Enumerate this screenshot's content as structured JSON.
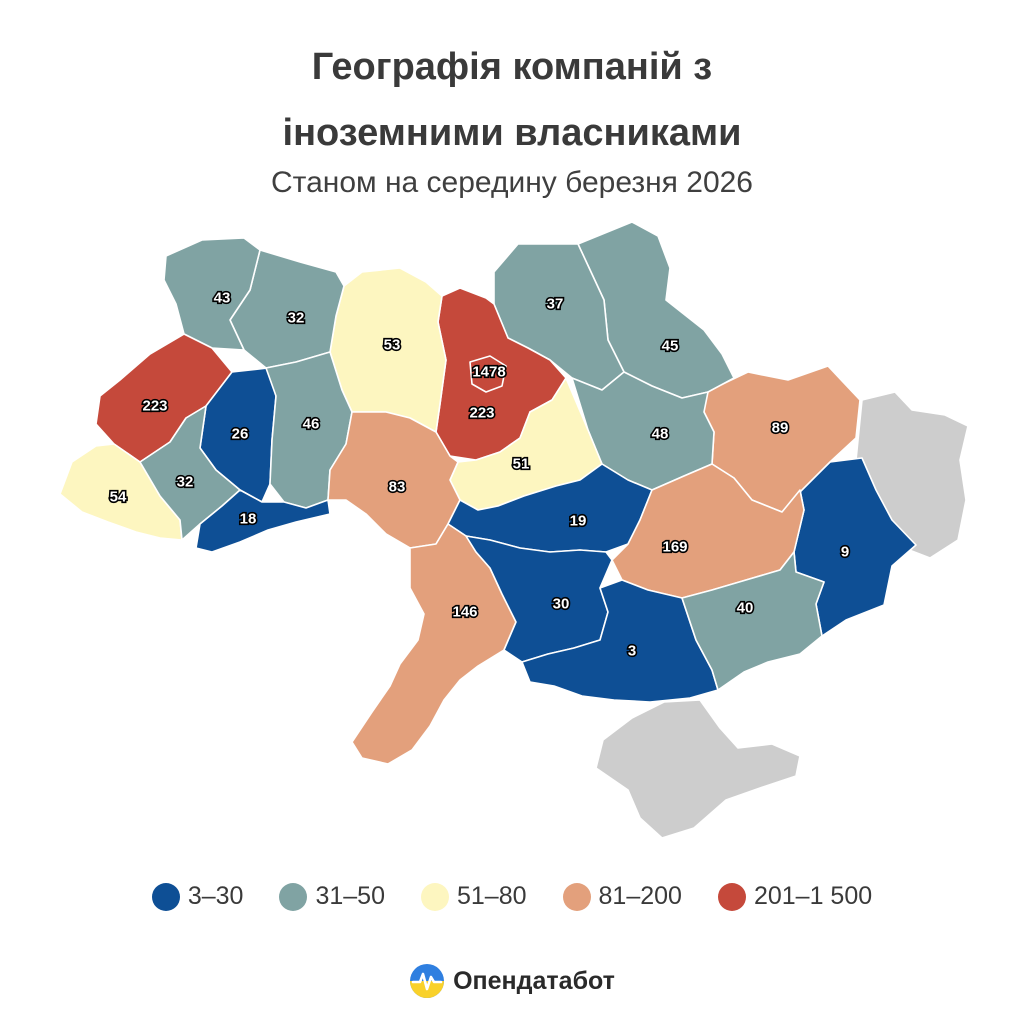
{
  "title_line1": "Географія компаній з",
  "title_line2": "іноземними власниками",
  "subtitle": "Станом на середину березня 2026",
  "colors": {
    "c1": "#0e4f95",
    "c2": "#80a3a3",
    "c3": "#fdf6c0",
    "c4": "#e3a07c",
    "c5": "#c5493b",
    "nodata": "#cdcdcd"
  },
  "regions": [
    {
      "id": "volyn",
      "value": "43",
      "bin": "c2"
    },
    {
      "id": "rivne",
      "value": "32",
      "bin": "c2"
    },
    {
      "id": "zhytomyr",
      "value": "53",
      "bin": "c3"
    },
    {
      "id": "kyiv-oblast",
      "value": "223",
      "bin": "c5"
    },
    {
      "id": "kyiv-city",
      "value": "1478",
      "bin": "c5"
    },
    {
      "id": "chernihiv",
      "value": "37",
      "bin": "c2"
    },
    {
      "id": "sumy",
      "value": "45",
      "bin": "c2"
    },
    {
      "id": "lviv",
      "value": "223",
      "bin": "c5"
    },
    {
      "id": "ternopil",
      "value": "26",
      "bin": "c1"
    },
    {
      "id": "khmelnytskyi",
      "value": "46",
      "bin": "c2"
    },
    {
      "id": "vinnytsia",
      "value": "83",
      "bin": "c4"
    },
    {
      "id": "cherkasy",
      "value": "51",
      "bin": "c3"
    },
    {
      "id": "poltava",
      "value": "48",
      "bin": "c2"
    },
    {
      "id": "kharkiv",
      "value": "89",
      "bin": "c4"
    },
    {
      "id": "zakarpattia",
      "value": "54",
      "bin": "c3"
    },
    {
      "id": "ivano-frankivsk",
      "value": "32",
      "bin": "c2"
    },
    {
      "id": "chernivtsi",
      "value": "18",
      "bin": "c1"
    },
    {
      "id": "kirovohrad",
      "value": "19",
      "bin": "c1"
    },
    {
      "id": "dnipropetrovsk",
      "value": "169",
      "bin": "c4"
    },
    {
      "id": "luhansk",
      "value": "9",
      "bin": "c1"
    },
    {
      "id": "odesa",
      "value": "146",
      "bin": "c4"
    },
    {
      "id": "mykolaiv",
      "value": "30",
      "bin": "c1"
    },
    {
      "id": "kherson",
      "value": "3",
      "bin": "c1"
    },
    {
      "id": "zaporizhzhia",
      "value": "40",
      "bin": "c2"
    },
    {
      "id": "donetsk-occupied",
      "value": "",
      "bin": "nodata"
    },
    {
      "id": "crimea",
      "value": "",
      "bin": "nodata"
    }
  ],
  "legend": [
    {
      "label": "3–30",
      "color": "#0e4f95"
    },
    {
      "label": "31–50",
      "color": "#80a3a3"
    },
    {
      "label": "51–80",
      "color": "#fdf6c0"
    },
    {
      "label": "81–200",
      "color": "#e3a07c"
    },
    {
      "label": "201–1 500",
      "color": "#c5493b"
    }
  ],
  "brand": {
    "name": "Опендатабот",
    "icon": "opendatabot-logo-icon"
  }
}
